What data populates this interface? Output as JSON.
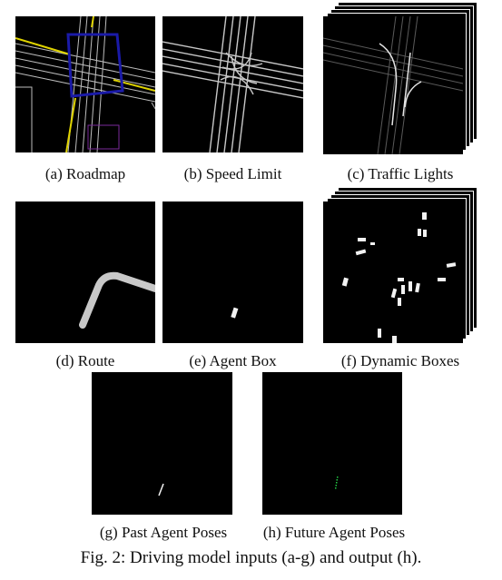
{
  "figure": {
    "panels": [
      {
        "id": "a",
        "caption": "(a) Roadmap"
      },
      {
        "id": "b",
        "caption": "(b) Speed Limit"
      },
      {
        "id": "c",
        "caption": "(c) Traffic Lights"
      },
      {
        "id": "d",
        "caption": "(d) Route"
      },
      {
        "id": "e",
        "caption": "(e) Agent Box"
      },
      {
        "id": "f",
        "caption": "(f) Dynamic Boxes"
      },
      {
        "id": "g",
        "caption": "(g) Past Agent Poses"
      },
      {
        "id": "h",
        "caption": "(h) Future Agent Poses"
      }
    ],
    "caption": "Fig. 2: Driving model inputs (a-g) and output (h)."
  },
  "colors": {
    "background": "#000000",
    "lane": "#cfcfcf",
    "yellow_lane": "#e0d400",
    "crosswalk": "#1a1aa8",
    "purple_box": "#7a2a9a",
    "route": "#c8c8c8",
    "box": "#f2f2f2",
    "future_pose": "#22cc44"
  }
}
